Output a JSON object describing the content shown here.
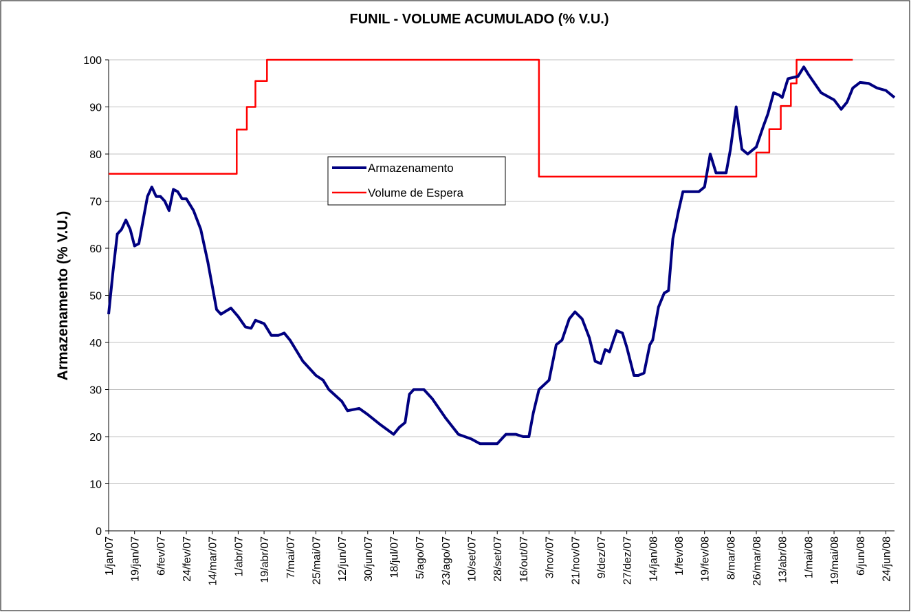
{
  "chart_data": {
    "type": "line",
    "title": "FUNIL - VOLUME ACUMULADO (% V.U.)",
    "y_label": "Armazenamento (% V.U.)",
    "xlim": [
      "2007-01-01",
      "2008-06-30"
    ],
    "ylim": [
      0,
      100
    ],
    "yticks": [
      0,
      10,
      20,
      30,
      40,
      50,
      60,
      70,
      80,
      90,
      100
    ],
    "xticks": [
      {
        "value": "2007-01-01",
        "label": "1/jan/07"
      },
      {
        "value": "2007-01-19",
        "label": "19/jan/07"
      },
      {
        "value": "2007-02-06",
        "label": "6/fev/07"
      },
      {
        "value": "2007-02-24",
        "label": "24/fev/07"
      },
      {
        "value": "2007-03-14",
        "label": "14/mar/07"
      },
      {
        "value": "2007-04-01",
        "label": "1/abr/07"
      },
      {
        "value": "2007-04-19",
        "label": "19/abr/07"
      },
      {
        "value": "2007-05-07",
        "label": "7/mai/07"
      },
      {
        "value": "2007-05-25",
        "label": "25/mai/07"
      },
      {
        "value": "2007-06-12",
        "label": "12/jun/07"
      },
      {
        "value": "2007-06-30",
        "label": "30/jun/07"
      },
      {
        "value": "2007-07-18",
        "label": "18/jul/07"
      },
      {
        "value": "2007-08-05",
        "label": "5/ago/07"
      },
      {
        "value": "2007-08-23",
        "label": "23/ago/07"
      },
      {
        "value": "2007-09-10",
        "label": "10/set/07"
      },
      {
        "value": "2007-09-28",
        "label": "28/set/07"
      },
      {
        "value": "2007-10-16",
        "label": "16/out/07"
      },
      {
        "value": "2007-11-03",
        "label": "3/nov/07"
      },
      {
        "value": "2007-11-21",
        "label": "21/nov/07"
      },
      {
        "value": "2007-12-09",
        "label": "9/dez/07"
      },
      {
        "value": "2007-12-27",
        "label": "27/dez/07"
      },
      {
        "value": "2008-01-14",
        "label": "14/jan/08"
      },
      {
        "value": "2008-02-01",
        "label": "1/fev/08"
      },
      {
        "value": "2008-02-19",
        "label": "19/fev/08"
      },
      {
        "value": "2008-03-08",
        "label": "8/mar/08"
      },
      {
        "value": "2008-03-26",
        "label": "26/mar/08"
      },
      {
        "value": "2008-04-13",
        "label": "13/abr/08"
      },
      {
        "value": "2008-05-01",
        "label": "1/mai/08"
      },
      {
        "value": "2008-05-19",
        "label": "19/mai/08"
      },
      {
        "value": "2008-06-06",
        "label": "6/jun/08"
      },
      {
        "value": "2008-06-24",
        "label": "24/jun/08"
      }
    ],
    "grid": true,
    "series": [
      {
        "name": "Armazenamento",
        "color": "#000080",
        "x": [
          "2007-01-01",
          "2007-01-04",
          "2007-01-07",
          "2007-01-10",
          "2007-01-13",
          "2007-01-16",
          "2007-01-19",
          "2007-01-22",
          "2007-01-25",
          "2007-01-28",
          "2007-01-31",
          "2007-02-03",
          "2007-02-06",
          "2007-02-09",
          "2007-02-12",
          "2007-02-15",
          "2007-02-18",
          "2007-02-21",
          "2007-02-24",
          "2007-03-01",
          "2007-03-06",
          "2007-03-11",
          "2007-03-14",
          "2007-03-17",
          "2007-03-20",
          "2007-03-27",
          "2007-04-01",
          "2007-04-06",
          "2007-04-10",
          "2007-04-13",
          "2007-04-19",
          "2007-04-24",
          "2007-04-29",
          "2007-05-03",
          "2007-05-07",
          "2007-05-16",
          "2007-05-25",
          "2007-05-30",
          "2007-06-03",
          "2007-06-12",
          "2007-06-16",
          "2007-06-24",
          "2007-06-30",
          "2007-07-09",
          "2007-07-18",
          "2007-07-22",
          "2007-07-26",
          "2007-07-29",
          "2007-08-01",
          "2007-08-08",
          "2007-08-14",
          "2007-08-23",
          "2007-09-01",
          "2007-09-10",
          "2007-09-16",
          "2007-09-28",
          "2007-10-04",
          "2007-10-11",
          "2007-10-16",
          "2007-10-20",
          "2007-10-23",
          "2007-10-27",
          "2007-11-03",
          "2007-11-08",
          "2007-11-12",
          "2007-11-17",
          "2007-11-21",
          "2007-11-26",
          "2007-12-01",
          "2007-12-05",
          "2007-12-09",
          "2007-12-12",
          "2007-12-15",
          "2007-12-20",
          "2007-12-24",
          "2007-12-27",
          "2008-01-01",
          "2008-01-04",
          "2008-01-08",
          "2008-01-12",
          "2008-01-14",
          "2008-01-18",
          "2008-01-22",
          "2008-01-25",
          "2008-01-28",
          "2008-02-01",
          "2008-02-04",
          "2008-02-10",
          "2008-02-15",
          "2008-02-19",
          "2008-02-23",
          "2008-02-27",
          "2008-03-01",
          "2008-03-05",
          "2008-03-08",
          "2008-03-12",
          "2008-03-16",
          "2008-03-20",
          "2008-03-26",
          "2008-03-31",
          "2008-04-03",
          "2008-04-07",
          "2008-04-11",
          "2008-04-13",
          "2008-04-17",
          "2008-04-24",
          "2008-04-28",
          "2008-05-01",
          "2008-05-10",
          "2008-05-19",
          "2008-05-24",
          "2008-05-28",
          "2008-06-01",
          "2008-06-06",
          "2008-06-12",
          "2008-06-18",
          "2008-06-24",
          "2008-06-30"
        ],
        "values": [
          46,
          55,
          63,
          64,
          66,
          64,
          60.5,
          61,
          66,
          71,
          73,
          71,
          71,
          70,
          68,
          72.5,
          72,
          70.5,
          70.5,
          68,
          64,
          57,
          52,
          47,
          46,
          47.3,
          45.5,
          43.3,
          43,
          44.7,
          44,
          41.5,
          41.5,
          42,
          40.5,
          36,
          33,
          32,
          30,
          27.5,
          25.5,
          26,
          24.7,
          22.5,
          20.5,
          22,
          23,
          29,
          30,
          30,
          28,
          24,
          20.5,
          19.5,
          18.5,
          18.5,
          20.5,
          20.5,
          20,
          20,
          25,
          30,
          32,
          39.5,
          40.5,
          45,
          46.5,
          45,
          41,
          36,
          35.5,
          38.5,
          38,
          42.5,
          42,
          39,
          33,
          33,
          33.5,
          39.5,
          40.5,
          47.5,
          50.5,
          51,
          62,
          68,
          72,
          72,
          72,
          73,
          80,
          76,
          76,
          76,
          81,
          90,
          81,
          80,
          81.5,
          86,
          88.5,
          93,
          92.5,
          92,
          96,
          96.5,
          98.5,
          97,
          93,
          91.5,
          89.5,
          91,
          94,
          95.2,
          95,
          94,
          93.5,
          92
        ]
      },
      {
        "name": "Volume de Espera",
        "color": "#ff0000",
        "x": [
          "2007-01-01",
          "2007-03-31",
          "2007-03-31",
          "2007-04-07",
          "2007-04-07",
          "2007-04-13",
          "2007-04-13",
          "2007-04-21",
          "2007-04-21",
          "2007-10-27",
          "2007-10-27",
          "2008-03-26",
          "2008-03-26",
          "2008-04-04",
          "2008-04-04",
          "2008-04-12",
          "2008-04-12",
          "2008-04-19",
          "2008-04-19",
          "2008-04-23",
          "2008-04-23",
          "2008-06-01"
        ],
        "values": [
          75.8,
          75.8,
          85.2,
          85.2,
          90,
          90,
          95.5,
          95.5,
          100,
          100,
          75.2,
          75.2,
          80.3,
          80.3,
          85.3,
          85.3,
          90.2,
          90.2,
          95,
          95,
          100,
          100
        ]
      }
    ]
  }
}
